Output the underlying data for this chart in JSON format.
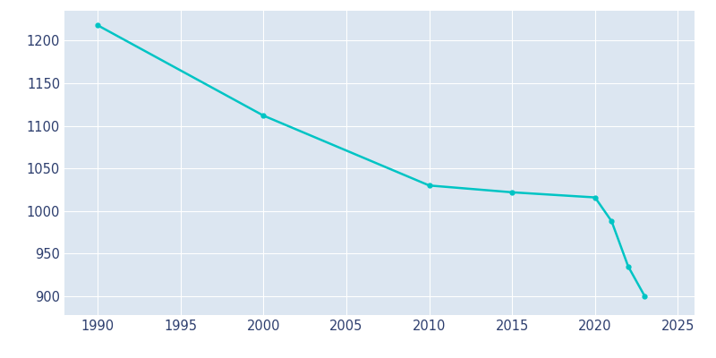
{
  "years": [
    1990,
    2000,
    2010,
    2015,
    2020,
    2021,
    2022,
    2023
  ],
  "population": [
    1218,
    1112,
    1030,
    1022,
    1016,
    988,
    935,
    900
  ],
  "line_color": "#00C4C4",
  "marker": "o",
  "marker_size": 3.5,
  "background_color": "#dce6f1",
  "figure_background": "#ffffff",
  "grid_color": "#ffffff",
  "xlim": [
    1988,
    2026
  ],
  "ylim": [
    878,
    1235
  ],
  "xticks": [
    1990,
    1995,
    2000,
    2005,
    2010,
    2015,
    2020,
    2025
  ],
  "yticks": [
    900,
    950,
    1000,
    1050,
    1100,
    1150,
    1200
  ],
  "tick_label_color": "#2d3e6e",
  "tick_fontsize": 10.5,
  "line_width": 1.8
}
